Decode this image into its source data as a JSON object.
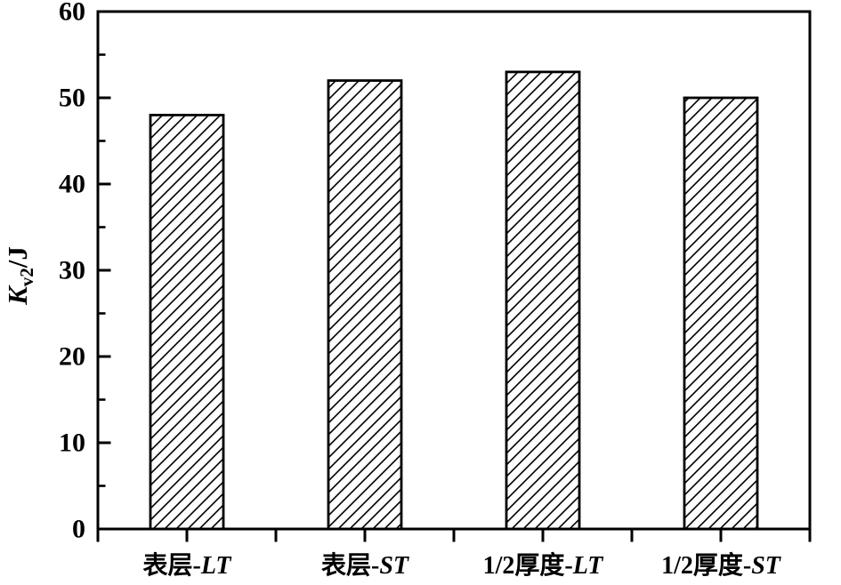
{
  "figure": {
    "background_color": "#ffffff",
    "ink_color": "#000000"
  },
  "chart_data": {
    "type": "bar",
    "title": "",
    "xlabel": "",
    "ylabel": "Kv2/J",
    "ylabel_parts": {
      "symbol_italic": "K",
      "subscript": "v2",
      "unit_suffix": "/J"
    },
    "categories": [
      {
        "label": "表层-LT",
        "prefix": "表层-",
        "suffix_italic": "LT"
      },
      {
        "label": "表层-ST",
        "prefix": "表层-",
        "suffix_italic": "ST"
      },
      {
        "label": "1/2厚度-LT",
        "prefix": "1/2厚度-",
        "suffix_italic": "LT"
      },
      {
        "label": "1/2厚度-ST",
        "prefix": "1/2厚度-",
        "suffix_italic": "ST"
      }
    ],
    "values": [
      48,
      52,
      53,
      50
    ],
    "ylim": [
      0,
      60
    ],
    "ytick_major": [
      0,
      10,
      20,
      30,
      40,
      50,
      60
    ],
    "ytick_minor": [
      5,
      15,
      25,
      35,
      45,
      55
    ],
    "ytick_labels": [
      "0",
      "10",
      "20",
      "30",
      "40",
      "50",
      "60"
    ],
    "grid": false,
    "legend": false,
    "frame_box": true,
    "bar_style": {
      "fill_pattern": "diagonal-hatch-forward-slash",
      "stroke_color": "#000000",
      "pattern_line_color": "#000000",
      "background": "#ffffff"
    }
  }
}
